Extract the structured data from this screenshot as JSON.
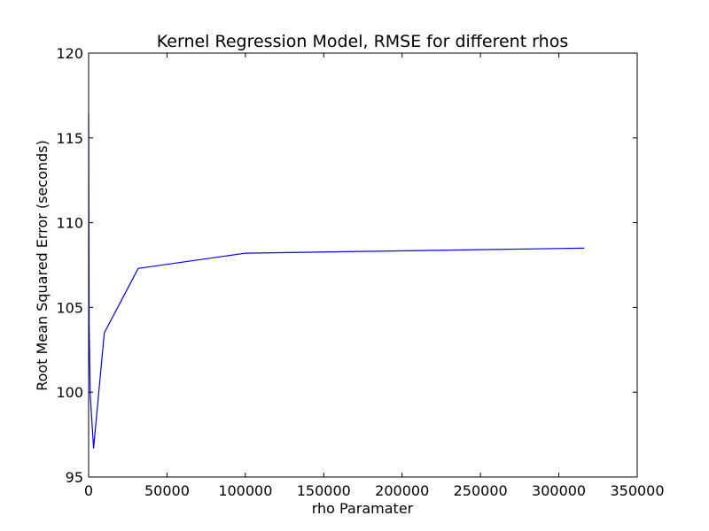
{
  "chart_data": {
    "type": "line",
    "title": "Kernel Regression Model, RMSE for different rhos",
    "xlabel": "rho Paramater",
    "ylabel": "Root Mean Squared Error (seconds)",
    "xlim": [
      0,
      350000
    ],
    "ylim": [
      95,
      120
    ],
    "xticks": [
      0,
      50000,
      100000,
      150000,
      200000,
      250000,
      300000,
      350000
    ],
    "yticks": [
      95,
      100,
      105,
      110,
      115,
      120
    ],
    "grid": false,
    "series": [
      {
        "color": "#0000ff",
        "x": [
          10,
          32,
          100,
          316,
          1000,
          3162,
          10000,
          31623,
          100000,
          316228
        ],
        "y": [
          116.4,
          115.6,
          112.0,
          104.0,
          99.9,
          96.7,
          103.5,
          107.3,
          108.2,
          108.5
        ]
      }
    ]
  }
}
